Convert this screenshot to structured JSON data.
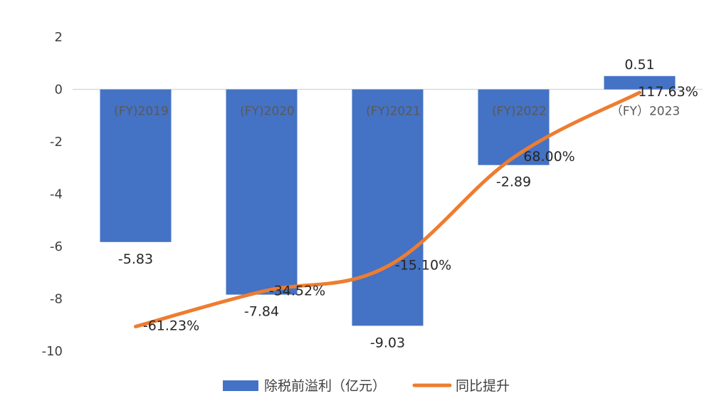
{
  "chart_data": {
    "type": "bar",
    "categories": [
      "(FY)2019",
      "(FY)2020",
      "(FY)2021",
      "(FY)2022",
      "（FY）2023"
    ],
    "series": [
      {
        "name": "除税前溢利（亿元）",
        "type": "bar",
        "values": [
          -5.83,
          -7.84,
          -9.03,
          -2.89,
          0.51
        ],
        "labels": [
          "-5.83",
          "-7.84",
          "-9.03",
          "-2.89",
          "0.51"
        ],
        "color": "#4472C4"
      },
      {
        "name": "同比提升",
        "type": "line",
        "values": [
          -61.23,
          -34.52,
          -15.1,
          68.0,
          117.63
        ],
        "labels": [
          "-61.23%",
          "-34.52%",
          "-15.10%",
          "68.00%",
          "117.63%"
        ],
        "color": "#ED7D31"
      }
    ],
    "y_axis": {
      "ylim": [
        -10,
        2
      ],
      "ticks": [
        2,
        0,
        -2,
        -4,
        -6,
        -8,
        -10
      ],
      "tick_labels": [
        "2",
        "0",
        "-2",
        "-4",
        "-6",
        "-8",
        "-10"
      ]
    },
    "line_axis": {
      "hidden": true,
      "ylim": [
        -80,
        160
      ]
    },
    "grid": false,
    "legend": "bottom"
  }
}
